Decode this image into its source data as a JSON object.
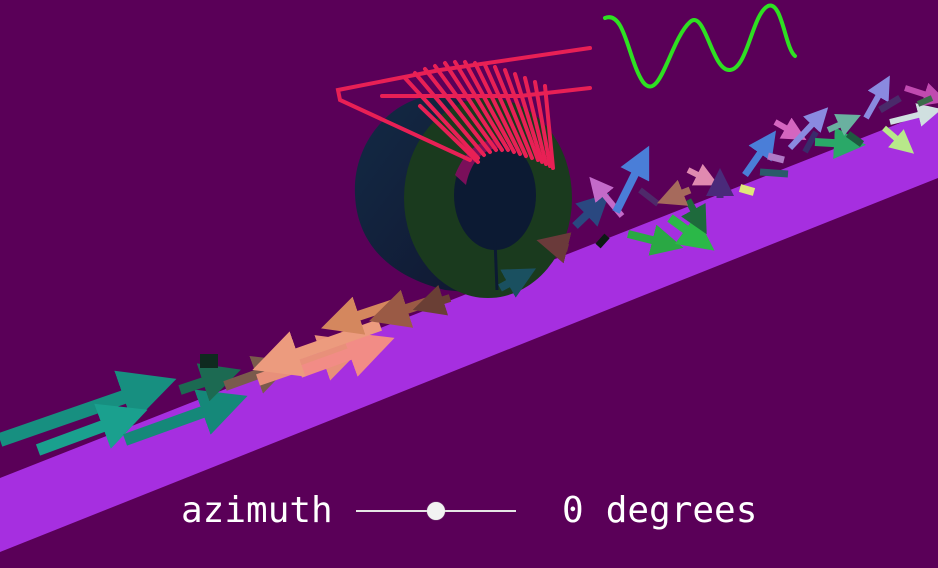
{
  "control": {
    "label": "azimuth",
    "angle": "0",
    "unit": "degrees",
    "slider_fraction": 0.5
  },
  "colors": {
    "background": "#5a0058",
    "beam": "#a62fe0",
    "coil": "#e82055",
    "wave": "#2ee022",
    "toroid_face": "#1a3a1e",
    "toroid_side": "#152038"
  },
  "scene": {
    "objects": [
      "beam",
      "toroid",
      "coil",
      "sine-wave",
      "arrow-field"
    ]
  }
}
